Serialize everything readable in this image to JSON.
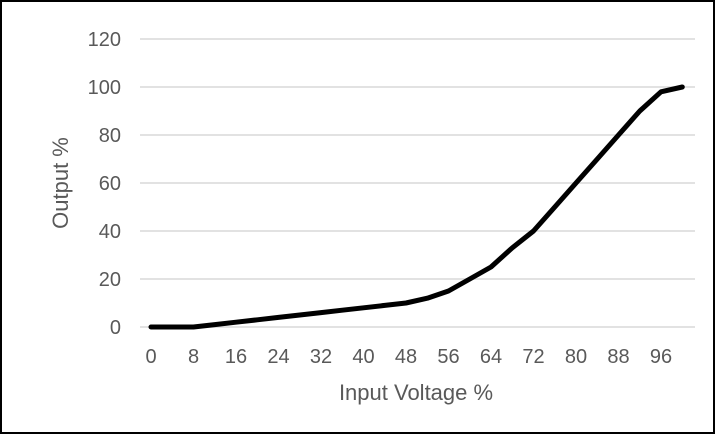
{
  "chart_data": {
    "type": "line",
    "title": "",
    "xlabel": "Input Voltage %",
    "ylabel": "Output %",
    "xticks": [
      0,
      8,
      16,
      24,
      32,
      40,
      48,
      56,
      64,
      72,
      80,
      88,
      96
    ],
    "yticks": [
      0,
      20,
      40,
      60,
      80,
      100,
      120
    ],
    "ylim": [
      0,
      120
    ],
    "grid": "horizontal",
    "legend": "none",
    "series": [
      {
        "x": [
          0,
          4,
          8,
          12,
          16,
          20,
          24,
          28,
          32,
          36,
          40,
          44,
          48,
          52,
          56,
          60,
          64,
          68,
          72,
          76,
          80,
          84,
          88,
          92,
          96,
          100
        ],
        "y": [
          0,
          0,
          0,
          1,
          2,
          3,
          4,
          5,
          6,
          7,
          8,
          9,
          10,
          12,
          15,
          20,
          25,
          33,
          40,
          50,
          60,
          70,
          80,
          90,
          98,
          100
        ]
      }
    ],
    "colors": {
      "line": "#000000",
      "grid": "#d9d9d9",
      "text": "#595959",
      "border": "#000000"
    }
  }
}
